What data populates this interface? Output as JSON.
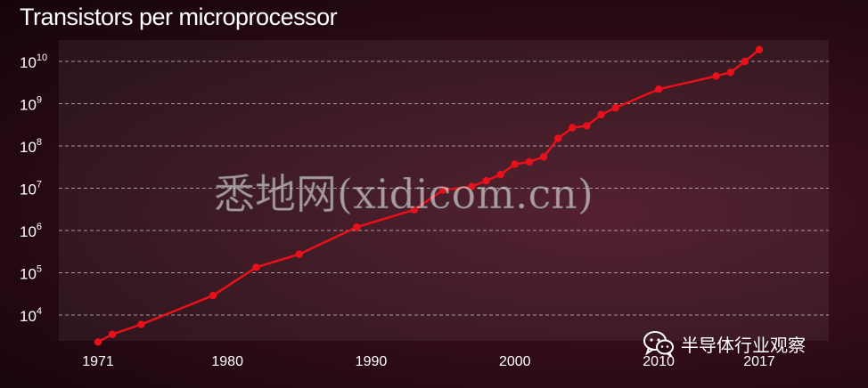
{
  "chart_data": {
    "type": "line",
    "title": "Transistors per microprocessor",
    "xlabel": "",
    "ylabel": "",
    "y_scale": "log",
    "ylim": [
      2000,
      20000000000
    ],
    "xlim": [
      1969,
      2019
    ],
    "grid": "horizontal-dashed",
    "y_ticks": [
      {
        "base": "10",
        "exp": "4"
      },
      {
        "base": "10",
        "exp": "5"
      },
      {
        "base": "10",
        "exp": "6"
      },
      {
        "base": "10",
        "exp": "7"
      },
      {
        "base": "10",
        "exp": "8"
      },
      {
        "base": "10",
        "exp": "9"
      },
      {
        "base": "10",
        "exp": "10"
      }
    ],
    "x_ticks": [
      "1971",
      "1980",
      "1990",
      "2000",
      "2010",
      "2017"
    ],
    "series": [
      {
        "color": "#e8101a",
        "points": [
          [
            1971,
            2300
          ],
          [
            1972,
            3500
          ],
          [
            1974,
            6000
          ],
          [
            1979,
            29000
          ],
          [
            1982,
            134000
          ],
          [
            1985,
            275000
          ],
          [
            1989,
            1200000
          ],
          [
            1993,
            3100000
          ],
          [
            1995,
            9000000
          ],
          [
            1997,
            11000000
          ],
          [
            1998,
            15000000
          ],
          [
            1999,
            21000000
          ],
          [
            2000,
            37000000
          ],
          [
            2001,
            42000000
          ],
          [
            2002,
            55000000
          ],
          [
            2003,
            150000000
          ],
          [
            2004,
            270000000
          ],
          [
            2005,
            300000000
          ],
          [
            2006,
            550000000
          ],
          [
            2007,
            800000000
          ],
          [
            2010,
            2200000000
          ],
          [
            2014,
            4500000000
          ],
          [
            2015,
            5500000000
          ],
          [
            2016,
            10000000000
          ],
          [
            2017,
            19000000000
          ]
        ]
      }
    ]
  },
  "watermark": "悉地网(xidicom.cn)",
  "source_badge": {
    "icon": "wechat-icon",
    "label": "半导体行业观察"
  }
}
